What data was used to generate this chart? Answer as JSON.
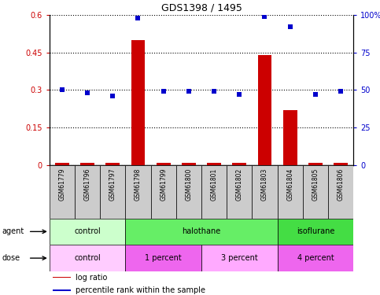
{
  "title": "GDS1398 / 1495",
  "samples": [
    "GSM61779",
    "GSM61796",
    "GSM61797",
    "GSM61798",
    "GSM61799",
    "GSM61800",
    "GSM61801",
    "GSM61802",
    "GSM61803",
    "GSM61804",
    "GSM61805",
    "GSM61806"
  ],
  "log_ratio": [
    0.01,
    0.01,
    0.01,
    0.5,
    0.01,
    0.01,
    0.01,
    0.01,
    0.44,
    0.22,
    0.01,
    0.01
  ],
  "percentile_rank": [
    50,
    48,
    46,
    98,
    49,
    49,
    49,
    47,
    99,
    92,
    47,
    49
  ],
  "ylim_left": [
    0,
    0.6
  ],
  "ylim_right": [
    0,
    100
  ],
  "yticks_left": [
    0,
    0.15,
    0.3,
    0.45,
    0.6
  ],
  "yticks_right": [
    0,
    25,
    50,
    75,
    100
  ],
  "ytick_labels_left": [
    "0",
    "0.15",
    "0.3",
    "0.45",
    "0.6"
  ],
  "ytick_labels_right": [
    "0",
    "25",
    "50",
    "75",
    "100%"
  ],
  "agent_groups": [
    {
      "label": "control",
      "start": 0,
      "end": 3,
      "color": "#ccffcc"
    },
    {
      "label": "halothane",
      "start": 3,
      "end": 9,
      "color": "#66ee66"
    },
    {
      "label": "isoflurane",
      "start": 9,
      "end": 12,
      "color": "#44dd44"
    }
  ],
  "dose_groups": [
    {
      "label": "control",
      "start": 0,
      "end": 3,
      "color": "#ffccff"
    },
    {
      "label": "1 percent",
      "start": 3,
      "end": 6,
      "color": "#ee66ee"
    },
    {
      "label": "3 percent",
      "start": 6,
      "end": 9,
      "color": "#ffaaff"
    },
    {
      "label": "4 percent",
      "start": 9,
      "end": 12,
      "color": "#ee66ee"
    }
  ],
  "bar_color": "#cc0000",
  "scatter_color": "#0000cc",
  "sample_bg_color": "#cccccc",
  "legend_items": [
    {
      "label": "log ratio",
      "color": "#cc0000"
    },
    {
      "label": "percentile rank within the sample",
      "color": "#0000cc"
    }
  ]
}
